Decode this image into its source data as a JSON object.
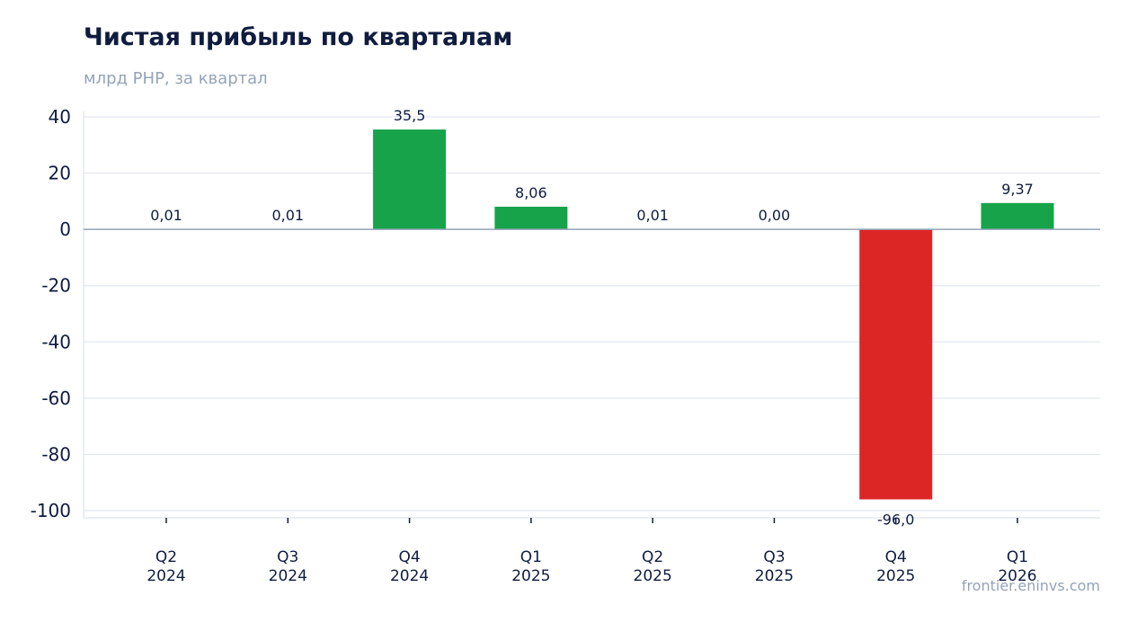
{
  "header": {
    "title": "Чистая прибыль по кварталам",
    "subtitle": "млрд РНР, за квартал"
  },
  "source": "frontier.eninvs.com",
  "colors": {
    "positive": "#17a34a",
    "negative": "#dc2626",
    "text": "#0f1c3f",
    "muted": "#94a3b8",
    "grid": "#e2e8f0",
    "zero_line": "#94a3b8"
  },
  "chart_data": {
    "type": "bar",
    "categories": [
      [
        "Q2",
        "2024"
      ],
      [
        "Q3",
        "2024"
      ],
      [
        "Q4",
        "2024"
      ],
      [
        "Q1",
        "2025"
      ],
      [
        "Q2",
        "2025"
      ],
      [
        "Q3",
        "2025"
      ],
      [
        "Q4",
        "2025"
      ],
      [
        "Q1",
        "2026"
      ]
    ],
    "values": [
      0.01,
      0.01,
      35.5,
      8.06,
      0.01,
      0.0,
      -96.0,
      9.37
    ],
    "data_labels": [
      "0,01",
      "0,01",
      "35,5",
      "8,06",
      "0,01",
      "0,00",
      "-96,0",
      "9,37"
    ],
    "ylim": [
      -100,
      40
    ],
    "yticks": [
      40,
      20,
      0,
      -20,
      -40,
      -60,
      -80,
      -100
    ],
    "grid": true,
    "legend": "none"
  }
}
